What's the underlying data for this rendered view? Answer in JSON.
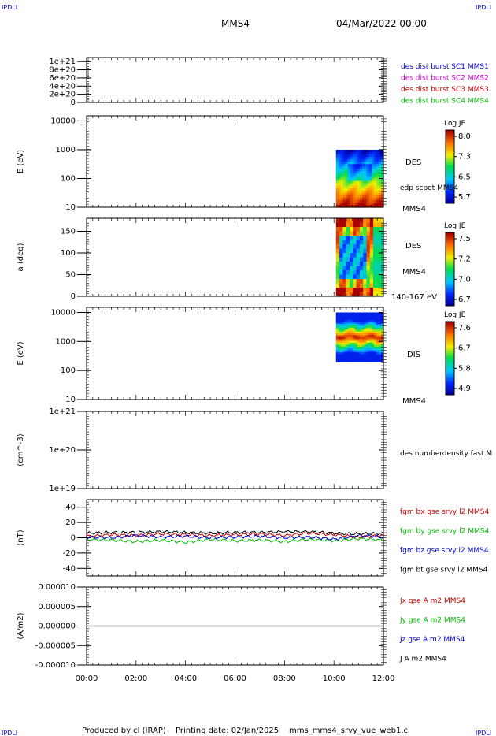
{
  "header": {
    "corner_tl": "IPDLI",
    "corner_tr": "IPDLI",
    "corner_bl": "IPDLI",
    "corner_br": "IPDLI",
    "spacecraft": "MMS4",
    "datetime": "04/Mar/2022 00:00"
  },
  "footer": {
    "produced": "Produced by cl (IRAP)",
    "printed": "Printing date: 02/Jan/2025",
    "file": "mms_mms4_srvy_vue_web1.cl"
  },
  "colors": {
    "blue": "#0000cc",
    "magenta": "#cc00cc",
    "red": "#cc0000",
    "green": "#00bb00",
    "black": "#000000"
  },
  "chart_data": [
    {
      "id": "p1",
      "type": "line",
      "ylabel": "",
      "ylim": [
        0,
        1.1e+21
      ],
      "ytick_values": [
        0,
        2e+20,
        4e+20,
        6e+20,
        8e+20,
        1e+21
      ],
      "ytick_labels": [
        "0",
        "2e+20",
        "4e+20",
        "6e+20",
        "8e+20",
        "1e+21"
      ],
      "baseline_value": 0,
      "legend": [
        {
          "text": "des dist burst SC1 MMS1",
          "color": "#0000cc"
        },
        {
          "text": "des dist burst SC2 MMS2",
          "color": "#cc00cc"
        },
        {
          "text": "des dist burst SC3 MMS3",
          "color": "#cc0000"
        },
        {
          "text": "des dist burst SC4 MMS4",
          "color": "#00bb00"
        }
      ]
    },
    {
      "id": "p2",
      "type": "heatmap",
      "ylabel": "E (eV)",
      "yscale": "log",
      "ylim": [
        10,
        15000
      ],
      "ytick_values": [
        10,
        100,
        1000,
        10000
      ],
      "ytick_labels": [
        "10",
        "100",
        "1000",
        "10000"
      ],
      "data_x_range": [
        "10:05",
        "12:00"
      ],
      "data_y_range": [
        10,
        1000
      ],
      "side_labels": [
        "DES",
        "edp scpot MMS4",
        "MMS4"
      ],
      "colorbar": {
        "title": "Log JE",
        "ticks": [
          "8.0",
          "7.3",
          "6.5",
          "5.7"
        ],
        "min": 5.7,
        "max": 8.0
      }
    },
    {
      "id": "p3",
      "type": "heatmap",
      "ylabel": "a (deg)",
      "ylim": [
        0,
        180
      ],
      "ytick_values": [
        0,
        50,
        100,
        150
      ],
      "ytick_labels": [
        "0",
        "50",
        "100",
        "150"
      ],
      "data_x_range": [
        "10:05",
        "12:00"
      ],
      "side_labels": [
        "DES",
        "MMS4",
        "140-167 eV"
      ],
      "colorbar": {
        "title": "Log JE",
        "ticks": [
          "7.5",
          "7.2",
          "7.0",
          "6.7"
        ],
        "min": 6.7,
        "max": 7.5
      }
    },
    {
      "id": "p4",
      "type": "heatmap",
      "ylabel": "E (eV)",
      "yscale": "log",
      "ylim": [
        10,
        15000
      ],
      "ytick_values": [
        10,
        100,
        1000,
        10000
      ],
      "ytick_labels": [
        "10",
        "100",
        "1000",
        "10000"
      ],
      "data_x_range": [
        "10:05",
        "12:00"
      ],
      "data_y_range": [
        200,
        10000
      ],
      "side_labels": [
        "DIS",
        "MMS4"
      ],
      "colorbar": {
        "title": "Log JE",
        "ticks": [
          "7.6",
          "6.7",
          "5.8",
          "4.9"
        ],
        "min": 4.9,
        "max": 7.6
      }
    },
    {
      "id": "p5",
      "type": "line",
      "ylabel": "(cm^-3)",
      "yscale": "log",
      "ylim": [
        1e+19,
        1e+21
      ],
      "ytick_values": [
        1e+19,
        1e+20,
        1e+21
      ],
      "ytick_labels": [
        "1e+19",
        "1e+20",
        "1e+21"
      ],
      "legend": [
        {
          "text": "des numberdensity fast M",
          "color": "#000000"
        }
      ]
    },
    {
      "id": "p6",
      "type": "line",
      "ylabel": "(nT)",
      "ylim": [
        -50,
        50
      ],
      "ytick_values": [
        -40,
        -20,
        0,
        20,
        40
      ],
      "ytick_labels": [
        "-40",
        "-20",
        "0",
        "20",
        "40"
      ],
      "series": [
        {
          "name": "fgm bx gse srvy l2 MMS4",
          "color": "#cc0000",
          "x": [
            0,
            1,
            2,
            3,
            4,
            5,
            6,
            7,
            8,
            9,
            10,
            11,
            12
          ],
          "values": [
            2,
            4,
            3,
            5,
            4,
            3,
            4,
            5,
            3,
            6,
            4,
            1,
            3
          ]
        },
        {
          "name": "fgm by gse srvy l2 MMS4",
          "color": "#00bb00",
          "x": [
            0,
            1,
            2,
            3,
            4,
            5,
            6,
            7,
            8,
            9,
            10,
            11,
            12
          ],
          "values": [
            -2,
            -3,
            -5,
            -3,
            -6,
            -2,
            -4,
            -3,
            -5,
            -2,
            -4,
            -1,
            -3
          ]
        },
        {
          "name": "fgm bz gse srvy l2 MMS4",
          "color": "#0000cc",
          "x": [
            0,
            1,
            2,
            3,
            4,
            5,
            6,
            7,
            8,
            9,
            10,
            11,
            12
          ],
          "values": [
            1,
            0,
            3,
            1,
            2,
            0,
            1,
            2,
            0,
            1,
            -2,
            3,
            1
          ]
        },
        {
          "name": "fgm bt gse srvy l2 MMS4",
          "color": "#000000",
          "x": [
            0,
            1,
            2,
            3,
            4,
            5,
            6,
            7,
            8,
            9,
            10,
            11,
            12
          ],
          "values": [
            6,
            7,
            7,
            8,
            7,
            6,
            7,
            7,
            8,
            8,
            6,
            5,
            6
          ]
        }
      ]
    },
    {
      "id": "p7",
      "type": "line",
      "ylabel": "(A/m2)",
      "ylim": [
        -1e-05,
        1e-05
      ],
      "ytick_values": [
        -1e-05,
        -5e-06,
        0,
        5e-06,
        1e-05
      ],
      "ytick_labels": [
        "-0.000010",
        "-0.000005",
        "0.000000",
        "0.000005",
        "0.000010"
      ],
      "xtick_labels": [
        "00:00",
        "02:00",
        "04:00",
        "06:00",
        "08:00",
        "10:00",
        "12:00"
      ],
      "series": [
        {
          "name": "Jx gse A m2 MMS4",
          "color": "#cc0000",
          "values": [
            0,
            0
          ]
        },
        {
          "name": "Jy gse A m2 MMS4",
          "color": "#00bb00",
          "values": [
            0,
            0
          ]
        },
        {
          "name": "Jz gse A m2 MMS4",
          "color": "#0000cc",
          "values": [
            0,
            0
          ]
        },
        {
          "name": "J A m2 MMS4",
          "color": "#000000",
          "values": [
            0,
            0
          ]
        }
      ]
    }
  ]
}
